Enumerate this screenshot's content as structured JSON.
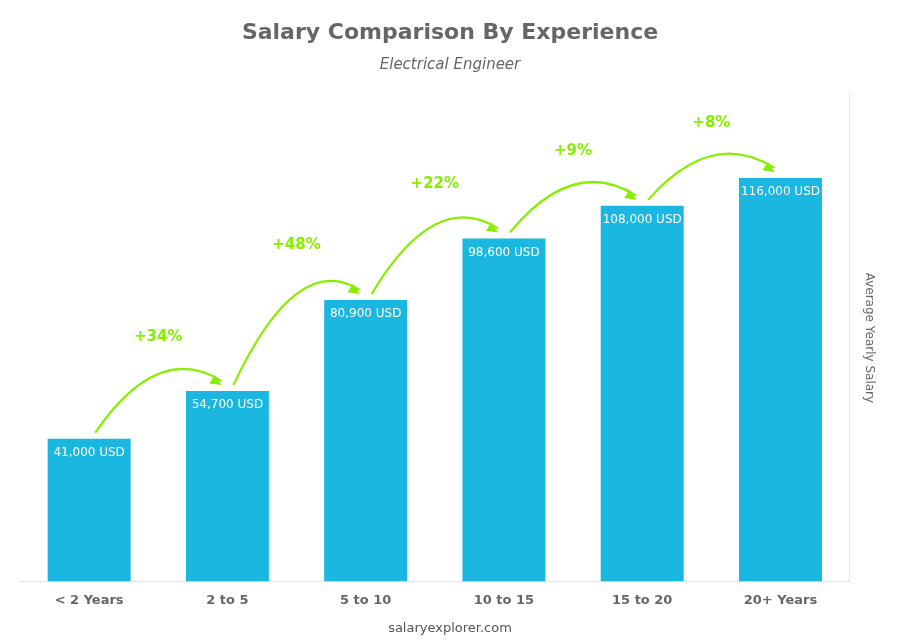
{
  "chart_data": {
    "type": "bar",
    "title": "Salary Comparison By Experience",
    "subtitle": "Electrical Engineer",
    "categories": [
      "< 2 Years",
      "2 to 5",
      "5 to 10",
      "10 to 15",
      "15 to 20",
      "20+ Years"
    ],
    "values": [
      41000,
      54700,
      80900,
      98600,
      108000,
      116000
    ],
    "value_labels": [
      "41,000 USD",
      "54,700 USD",
      "80,900 USD",
      "98,600 USD",
      "108,000 USD",
      "116,000 USD"
    ],
    "data_labels": true,
    "color": "#1ab8e0",
    "annotations": [
      {
        "text": "+34%",
        "color": "#88ee00"
      },
      {
        "text": "+48%",
        "color": "#88ee00"
      },
      {
        "text": "+22%",
        "color": "#88ee00"
      },
      {
        "text": "+9%",
        "color": "#88ee00"
      },
      {
        "text": "+8%",
        "color": "#88ee00"
      }
    ],
    "ylabel": "Average Yearly Salary",
    "source": "salaryexplorer.com",
    "ylim": [
      0,
      140000
    ],
    "grid": false,
    "tick_labels": "x"
  }
}
